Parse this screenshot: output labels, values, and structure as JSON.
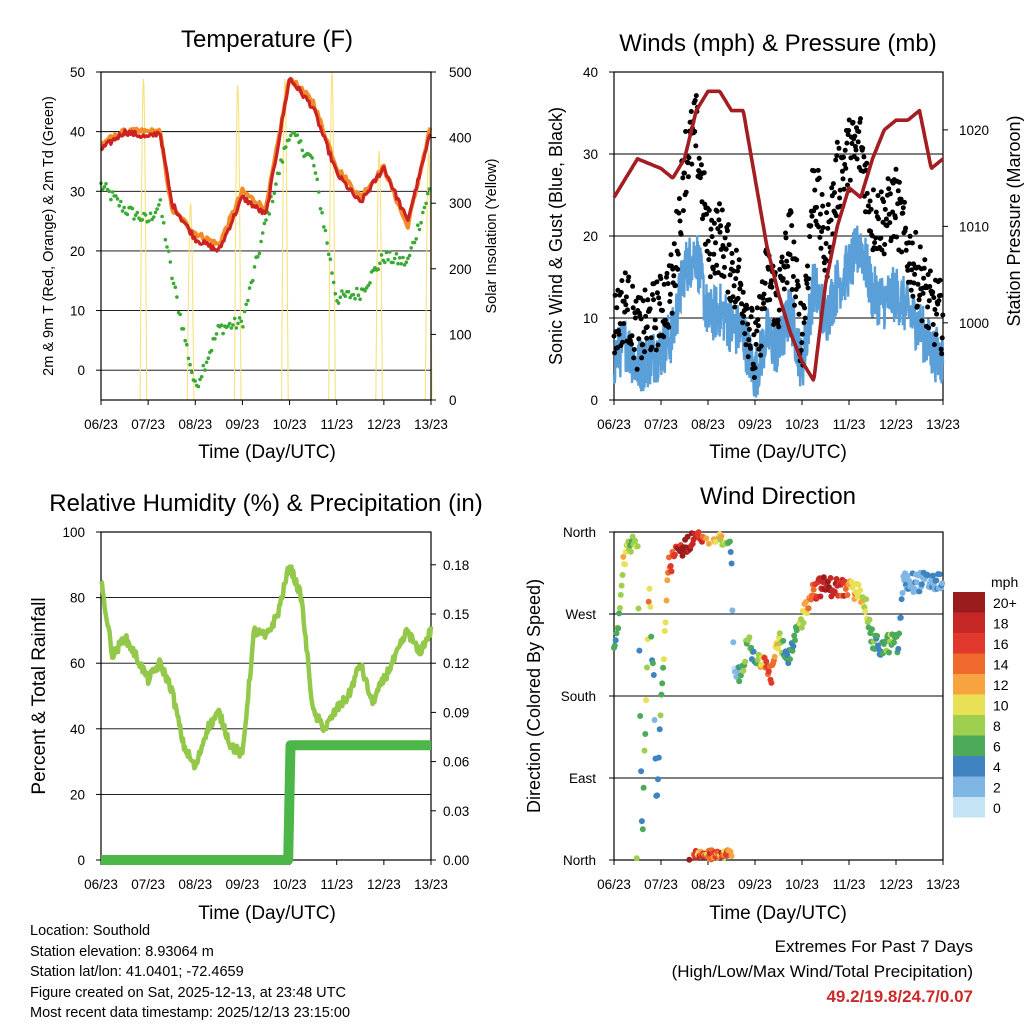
{
  "colors": {
    "temp_red": "#cc2222",
    "temp_orange": "#f28c28",
    "dewpoint_green": "#3aaa35",
    "solar_yellow": "#f7e27a",
    "wind_blue": "#5a9fd8",
    "gust_black": "#000000",
    "pressure_maroon": "#a31e22",
    "rh_green": "#93c84a",
    "precip_green": "#4cb748"
  },
  "x_ticks": [
    "06/23",
    "07/23",
    "08/23",
    "09/23",
    "10/23",
    "11/23",
    "12/23",
    "13/23"
  ],
  "chart_data": [
    {
      "type": "line",
      "title": "Temperature (F)",
      "xlabel": "Time (Day/UTC)",
      "ylabel": "2m & 9m T (Red, Orange) & 2m Td (Green)",
      "ylabel2": "Solar Insolation (Yellow)",
      "ylim": [
        -5,
        50
      ],
      "y2lim": [
        0,
        500
      ],
      "y_ticks": [
        "50",
        "40",
        "30",
        "20",
        "10",
        "0"
      ],
      "y2_ticks": [
        "500",
        "400",
        "300",
        "200",
        "100",
        "0"
      ],
      "x": [
        6,
        6.5,
        7,
        7.25,
        7.5,
        8,
        8.5,
        9,
        9.5,
        10,
        10.5,
        11,
        11.5,
        12,
        12.5,
        13
      ],
      "series": [
        {
          "name": "2m T",
          "color": "temp_red",
          "values": [
            37,
            40,
            39,
            40,
            28,
            22,
            20,
            29,
            26,
            49,
            44,
            33,
            28,
            34,
            25,
            40
          ]
        },
        {
          "name": "9m T",
          "color": "temp_orange",
          "values": [
            38,
            40,
            40,
            40,
            27,
            23,
            21,
            30,
            27,
            49,
            45,
            34,
            29,
            34,
            24,
            41
          ]
        },
        {
          "name": "2m Td",
          "color": "dewpoint_green",
          "values": [
            31,
            27,
            25,
            28,
            16,
            -3,
            7,
            8,
            25,
            40,
            35,
            12,
            13,
            19,
            18,
            31
          ]
        },
        {
          "name": "Solar Insolation",
          "color": "solar_yellow",
          "axis": "y2",
          "peaks": [
            {
              "x": 6.9,
              "value": 490
            },
            {
              "x": 7.9,
              "value": 300
            },
            {
              "x": 8.9,
              "value": 480
            },
            {
              "x": 9.9,
              "value": 490
            },
            {
              "x": 10.9,
              "value": 500
            },
            {
              "x": 11.9,
              "value": 380
            },
            {
              "x": 12.95,
              "value": 380
            }
          ]
        }
      ]
    },
    {
      "type": "line",
      "title": "Winds (mph) & Pressure (mb)",
      "xlabel": "Time (Day/UTC)",
      "ylabel": "Sonic Wind & Gust (Blue, Black)",
      "ylabel2": "Station Pressure (Maroon)",
      "ylim": [
        0,
        40
      ],
      "y2lim": [
        992,
        1026
      ],
      "y_ticks": [
        "40",
        "30",
        "20",
        "10",
        "0"
      ],
      "y2_ticks": [
        "1020",
        "1010",
        "1000"
      ],
      "x": [
        6,
        6.25,
        6.5,
        7,
        7.25,
        7.5,
        7.75,
        8,
        8.25,
        8.5,
        8.75,
        9,
        9.25,
        9.5,
        9.75,
        10,
        10.25,
        10.5,
        10.75,
        11,
        11.25,
        11.5,
        11.75,
        12,
        12.25,
        12.5,
        12.75,
        13
      ],
      "series": [
        {
          "name": "Sonic Wind",
          "color": "wind_blue",
          "values": [
            5,
            7,
            4,
            6,
            8,
            16,
            18,
            10,
            11,
            9,
            8,
            3,
            8,
            6,
            11,
            4,
            14,
            10,
            14,
            16,
            19,
            13,
            12,
            13,
            11,
            9,
            6,
            5
          ]
        },
        {
          "name": "Gust",
          "color": "gust_black",
          "values": [
            9,
            12,
            8,
            11,
            14,
            29,
            33,
            19,
            20,
            16,
            13,
            5,
            15,
            12,
            20,
            7,
            27,
            18,
            27,
            30,
            31,
            22,
            22,
            24,
            18,
            15,
            11,
            10
          ]
        },
        {
          "name": "Station Pressure",
          "color": "pressure_maroon",
          "axis": "y2",
          "values": [
            1013,
            1015,
            1017,
            1016,
            1015,
            1017,
            1022,
            1024,
            1024,
            1022,
            1022,
            1015,
            1008,
            1003,
            999,
            996,
            994,
            1004,
            1010,
            1014,
            1013,
            1017,
            1020,
            1021,
            1021,
            1022,
            1016,
            1017
          ]
        }
      ]
    },
    {
      "type": "line",
      "title": "Relative Humidity (%) & Precipitation (in)",
      "xlabel": "Time (Day/UTC)",
      "ylabel": "Percent & Total Rainfall",
      "ylim": [
        0,
        100
      ],
      "y2lim": [
        0,
        0.2
      ],
      "y_ticks": [
        "100",
        "80",
        "60",
        "40",
        "20",
        "0"
      ],
      "y2_ticks": [
        "0.18",
        "0.15",
        "0.12",
        "0.09",
        "0.06",
        "0.03",
        "0.00"
      ],
      "x": [
        6,
        6.25,
        6.5,
        6.75,
        7,
        7.25,
        7.5,
        7.75,
        8,
        8.25,
        8.5,
        8.75,
        9,
        9.25,
        9.5,
        9.75,
        10,
        10.25,
        10.5,
        10.75,
        11,
        11.25,
        11.5,
        11.75,
        12,
        12.25,
        12.5,
        12.75,
        13
      ],
      "series": [
        {
          "name": "Relative Humidity",
          "color": "rh_green",
          "values": [
            85,
            62,
            68,
            62,
            55,
            60,
            52,
            35,
            28,
            40,
            45,
            35,
            32,
            70,
            68,
            75,
            90,
            80,
            45,
            40,
            46,
            50,
            60,
            48,
            55,
            62,
            70,
            63,
            70
          ]
        },
        {
          "name": "Total Precipitation",
          "color": "precip_green",
          "axis": "y2",
          "values": [
            0,
            0,
            0,
            0,
            0,
            0,
            0,
            0,
            0,
            0,
            0,
            0,
            0,
            0,
            0,
            0,
            0.07,
            0.07,
            0.07,
            0.07,
            0.07,
            0.07,
            0.07,
            0.07,
            0.07,
            0.07,
            0.07,
            0.07,
            0.07
          ]
        }
      ]
    },
    {
      "type": "scatter",
      "title": "Wind Direction",
      "xlabel": "Time (Day/UTC)",
      "ylabel": "Direction (Colored By Speed)",
      "y_ticks": [
        "North",
        "West",
        "South",
        "East",
        "North"
      ],
      "colorbar": {
        "unit": "mph",
        "labels": [
          "20+",
          "18",
          "16",
          "14",
          "12",
          "10",
          "8",
          "6",
          "4",
          "2",
          "0"
        ],
        "colors": [
          "#9b1c1c",
          "#c62828",
          "#e0382b",
          "#ef6a2c",
          "#f7a440",
          "#e8e055",
          "#9fcf4e",
          "#4caa5a",
          "#3f83c0",
          "#7fb6e3",
          "#c4e4f6"
        ]
      },
      "points_by_time": [
        {
          "x": 6.05,
          "direction": 240,
          "speed": 5
        },
        {
          "x": 6.2,
          "direction": 330,
          "speed": 10
        },
        {
          "x": 6.35,
          "direction": 345,
          "speed": 7
        },
        {
          "x": 6.5,
          "direction": 355,
          "speed": 8
        },
        {
          "x": 6.6,
          "direction": 20,
          "speed": 4
        },
        {
          "x": 6.75,
          "direction": 300,
          "speed": 12
        },
        {
          "x": 6.8,
          "direction": 235,
          "speed": 6
        },
        {
          "x": 6.85,
          "direction": 190,
          "speed": 3
        },
        {
          "x": 6.9,
          "direction": 60,
          "speed": 2
        },
        {
          "x": 7.15,
          "direction": 320,
          "speed": 13
        },
        {
          "x": 7.3,
          "direction": 335,
          "speed": 17
        },
        {
          "x": 7.5,
          "direction": 345,
          "speed": 20
        },
        {
          "x": 7.75,
          "direction": 358,
          "speed": 19
        },
        {
          "x": 8.0,
          "direction": 358,
          "speed": 13
        },
        {
          "x": 8.25,
          "direction": 357,
          "speed": 10
        },
        {
          "x": 8.45,
          "direction": 355,
          "speed": 7
        },
        {
          "x": 8.5,
          "direction": 320,
          "speed": 3
        },
        {
          "x": 8.55,
          "direction": 200,
          "speed": 1
        },
        {
          "x": 8.7,
          "direction": 205,
          "speed": 5
        },
        {
          "x": 8.85,
          "direction": 240,
          "speed": 8
        },
        {
          "x": 9.0,
          "direction": 215,
          "speed": 5
        },
        {
          "x": 9.2,
          "direction": 225,
          "speed": 14
        },
        {
          "x": 9.35,
          "direction": 205,
          "speed": 16
        },
        {
          "x": 9.5,
          "direction": 245,
          "speed": 10
        },
        {
          "x": 9.7,
          "direction": 215,
          "speed": 4
        },
        {
          "x": 9.9,
          "direction": 250,
          "speed": 7
        },
        {
          "x": 10.2,
          "direction": 295,
          "speed": 14
        },
        {
          "x": 10.4,
          "direction": 300,
          "speed": 18
        },
        {
          "x": 10.65,
          "direction": 300,
          "speed": 19
        },
        {
          "x": 10.9,
          "direction": 298,
          "speed": 16
        },
        {
          "x": 11.1,
          "direction": 295,
          "speed": 12
        },
        {
          "x": 11.3,
          "direction": 292,
          "speed": 10
        },
        {
          "x": 11.5,
          "direction": 240,
          "speed": 6
        },
        {
          "x": 11.7,
          "direction": 232,
          "speed": 4
        },
        {
          "x": 11.9,
          "direction": 240,
          "speed": 8
        },
        {
          "x": 12.05,
          "direction": 235,
          "speed": 5
        },
        {
          "x": 12.15,
          "direction": 305,
          "speed": 3
        }
      ]
    }
  ],
  "info": {
    "location": "Location: Southold",
    "elevation": "Station elevation: 8.93064 m",
    "latlon": "Station lat/lon: 41.0401; -72.4659",
    "created": "Figure created on Sat, 2025-12-13, at 23:48 UTC",
    "recent": "Most recent data timestamp: 2025/12/13 23:15:00"
  },
  "extremes": {
    "title": "Extremes For Past 7 Days",
    "subtitle": "(High/Low/Max Wind/Total Precipitation)",
    "values": "49.2/19.8/24.7/0.07"
  }
}
